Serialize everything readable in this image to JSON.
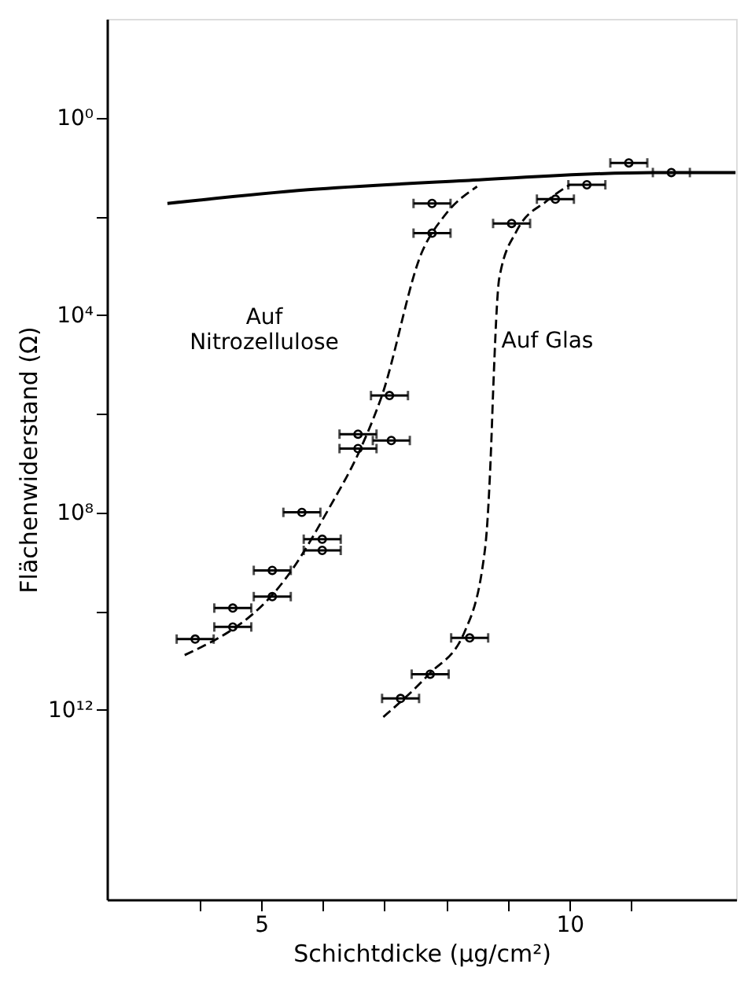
{
  "chart_data": {
    "type": "scatter",
    "xlabel": "Schichtdicke (µg/cm²)",
    "ylabel": "Flächenwiderstand (Ω)",
    "xlim": [
      2.5,
      12.7
    ],
    "ylim": [
      7000000000000000.0,
      0.01
    ],
    "log": "y",
    "grid": false,
    "marker": "circle",
    "xticks": [
      {
        "value": 4,
        "label": null
      },
      5,
      {
        "value": 6,
        "label": null
      },
      {
        "value": 7,
        "label": null
      },
      {
        "value": 8,
        "label": null
      },
      {
        "value": 9,
        "label": null
      },
      10,
      {
        "value": 11,
        "label": null
      }
    ],
    "yticks": [
      {
        "value": 1,
        "label": "10⁰"
      },
      {
        "value": 100,
        "label": null
      },
      {
        "value": 10000,
        "label": "10⁴"
      },
      {
        "value": 1000000,
        "label": null
      },
      {
        "value": 100000000,
        "label": "10⁸"
      },
      {
        "value": 10000000000,
        "label": null
      },
      {
        "value": 1000000000000,
        "label": "10¹²"
      }
    ],
    "series": [
      {
        "color": "#000000",
        "x": [
          7.77,
          7.77,
          7.08,
          6.57,
          7.11,
          6.57,
          5.66,
          5.99,
          5.99,
          5.18,
          5.18,
          4.54,
          4.54,
          3.93
        ],
        "values": [
          55,
          220,
          430000,
          2600000,
          3500000,
          5100000,
          100000000,
          350000000,
          590000000,
          1500000000,
          5100000000,
          8700000000,
          21000000000,
          37000000000
        ],
        "xerrors": [
          0.3,
          0.3,
          0.3,
          0.3,
          0.3,
          0.3,
          0.3,
          0.3,
          0.3,
          0.3,
          0.3,
          0.3,
          0.3,
          0.3
        ]
      },
      {
        "color": "#000000",
        "x": [
          9.06,
          9.77,
          10.28,
          10.96,
          11.65,
          8.38,
          7.74,
          7.26
        ],
        "values": [
          140,
          45,
          23,
          8.3,
          13,
          35000000000,
          190000000000,
          590000000000
        ],
        "xerrors": [
          0.3,
          0.3,
          0.3,
          0.3,
          0.3,
          0.3,
          0.3,
          0.3
        ]
      },
      {
        "type": "line",
        "color": "#000000",
        "line_style": "solid",
        "marker": "none",
        "x": [
          3.48,
          5.76,
          8.3,
          11.35,
          12.69
        ],
        "values": [
          55,
          29,
          19,
          13,
          13
        ]
      },
      {
        "type": "line",
        "color": "#000000",
        "line_style": "dashed",
        "marker": "none",
        "x": [
          3.76,
          5.51,
          6.09,
          6.6,
          6.95,
          7.61,
          7.97,
          8.5
        ],
        "values": [
          78000000000,
          1400000000,
          87000000,
          5500000,
          460000,
          520,
          98,
          25
        ]
      },
      {
        "type": "line",
        "color": "#000000",
        "line_style": "dashed",
        "marker": "none",
        "x": [
          6.98,
          7.72,
          8.3,
          8.63,
          8.73,
          8.76,
          8.86,
          9.14,
          9.64,
          10.0
        ],
        "values": [
          1400000000000,
          190000000000,
          26000000000,
          540000000,
          4100000,
          370000,
          1800,
          200,
          48,
          23
        ]
      }
    ],
    "annotations": [
      "Auf Nitrozellulose",
      "Auf Glas"
    ]
  }
}
